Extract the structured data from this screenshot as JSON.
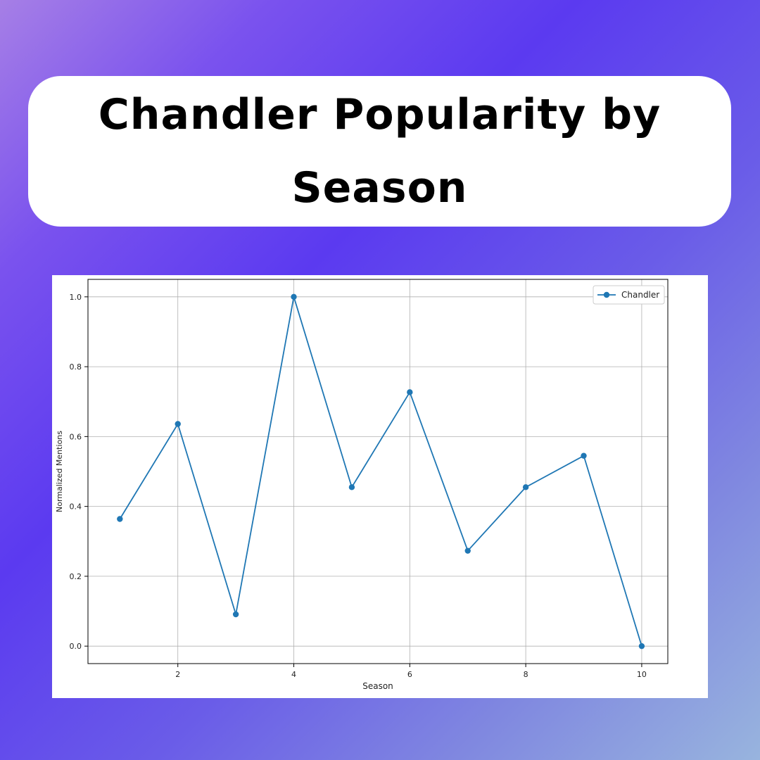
{
  "title": "Chandler Popularity by Season",
  "colors": {
    "line": "#1f77b4",
    "grid": "#b0b0b0"
  },
  "chart_data": {
    "type": "line",
    "title": "",
    "xlabel": "Season",
    "ylabel": "Normalized Mentions",
    "xlim": [
      0.45,
      10.45
    ],
    "ylim": [
      -0.05,
      1.05
    ],
    "xticks": [
      2,
      4,
      6,
      8,
      10
    ],
    "yticks": [
      0.0,
      0.2,
      0.4,
      0.6,
      0.8,
      1.0
    ],
    "ytick_labels": [
      "0.0",
      "0.2",
      "0.4",
      "0.6",
      "0.8",
      "1.0"
    ],
    "grid": true,
    "legend": "top-right",
    "series": [
      {
        "name": "Chandler",
        "marker": "circle",
        "x": [
          1,
          2,
          3,
          4,
          5,
          6,
          7,
          8,
          9,
          10
        ],
        "values": [
          0.364,
          0.636,
          0.091,
          1.0,
          0.455,
          0.727,
          0.273,
          0.455,
          0.545,
          0.0
        ]
      }
    ]
  }
}
